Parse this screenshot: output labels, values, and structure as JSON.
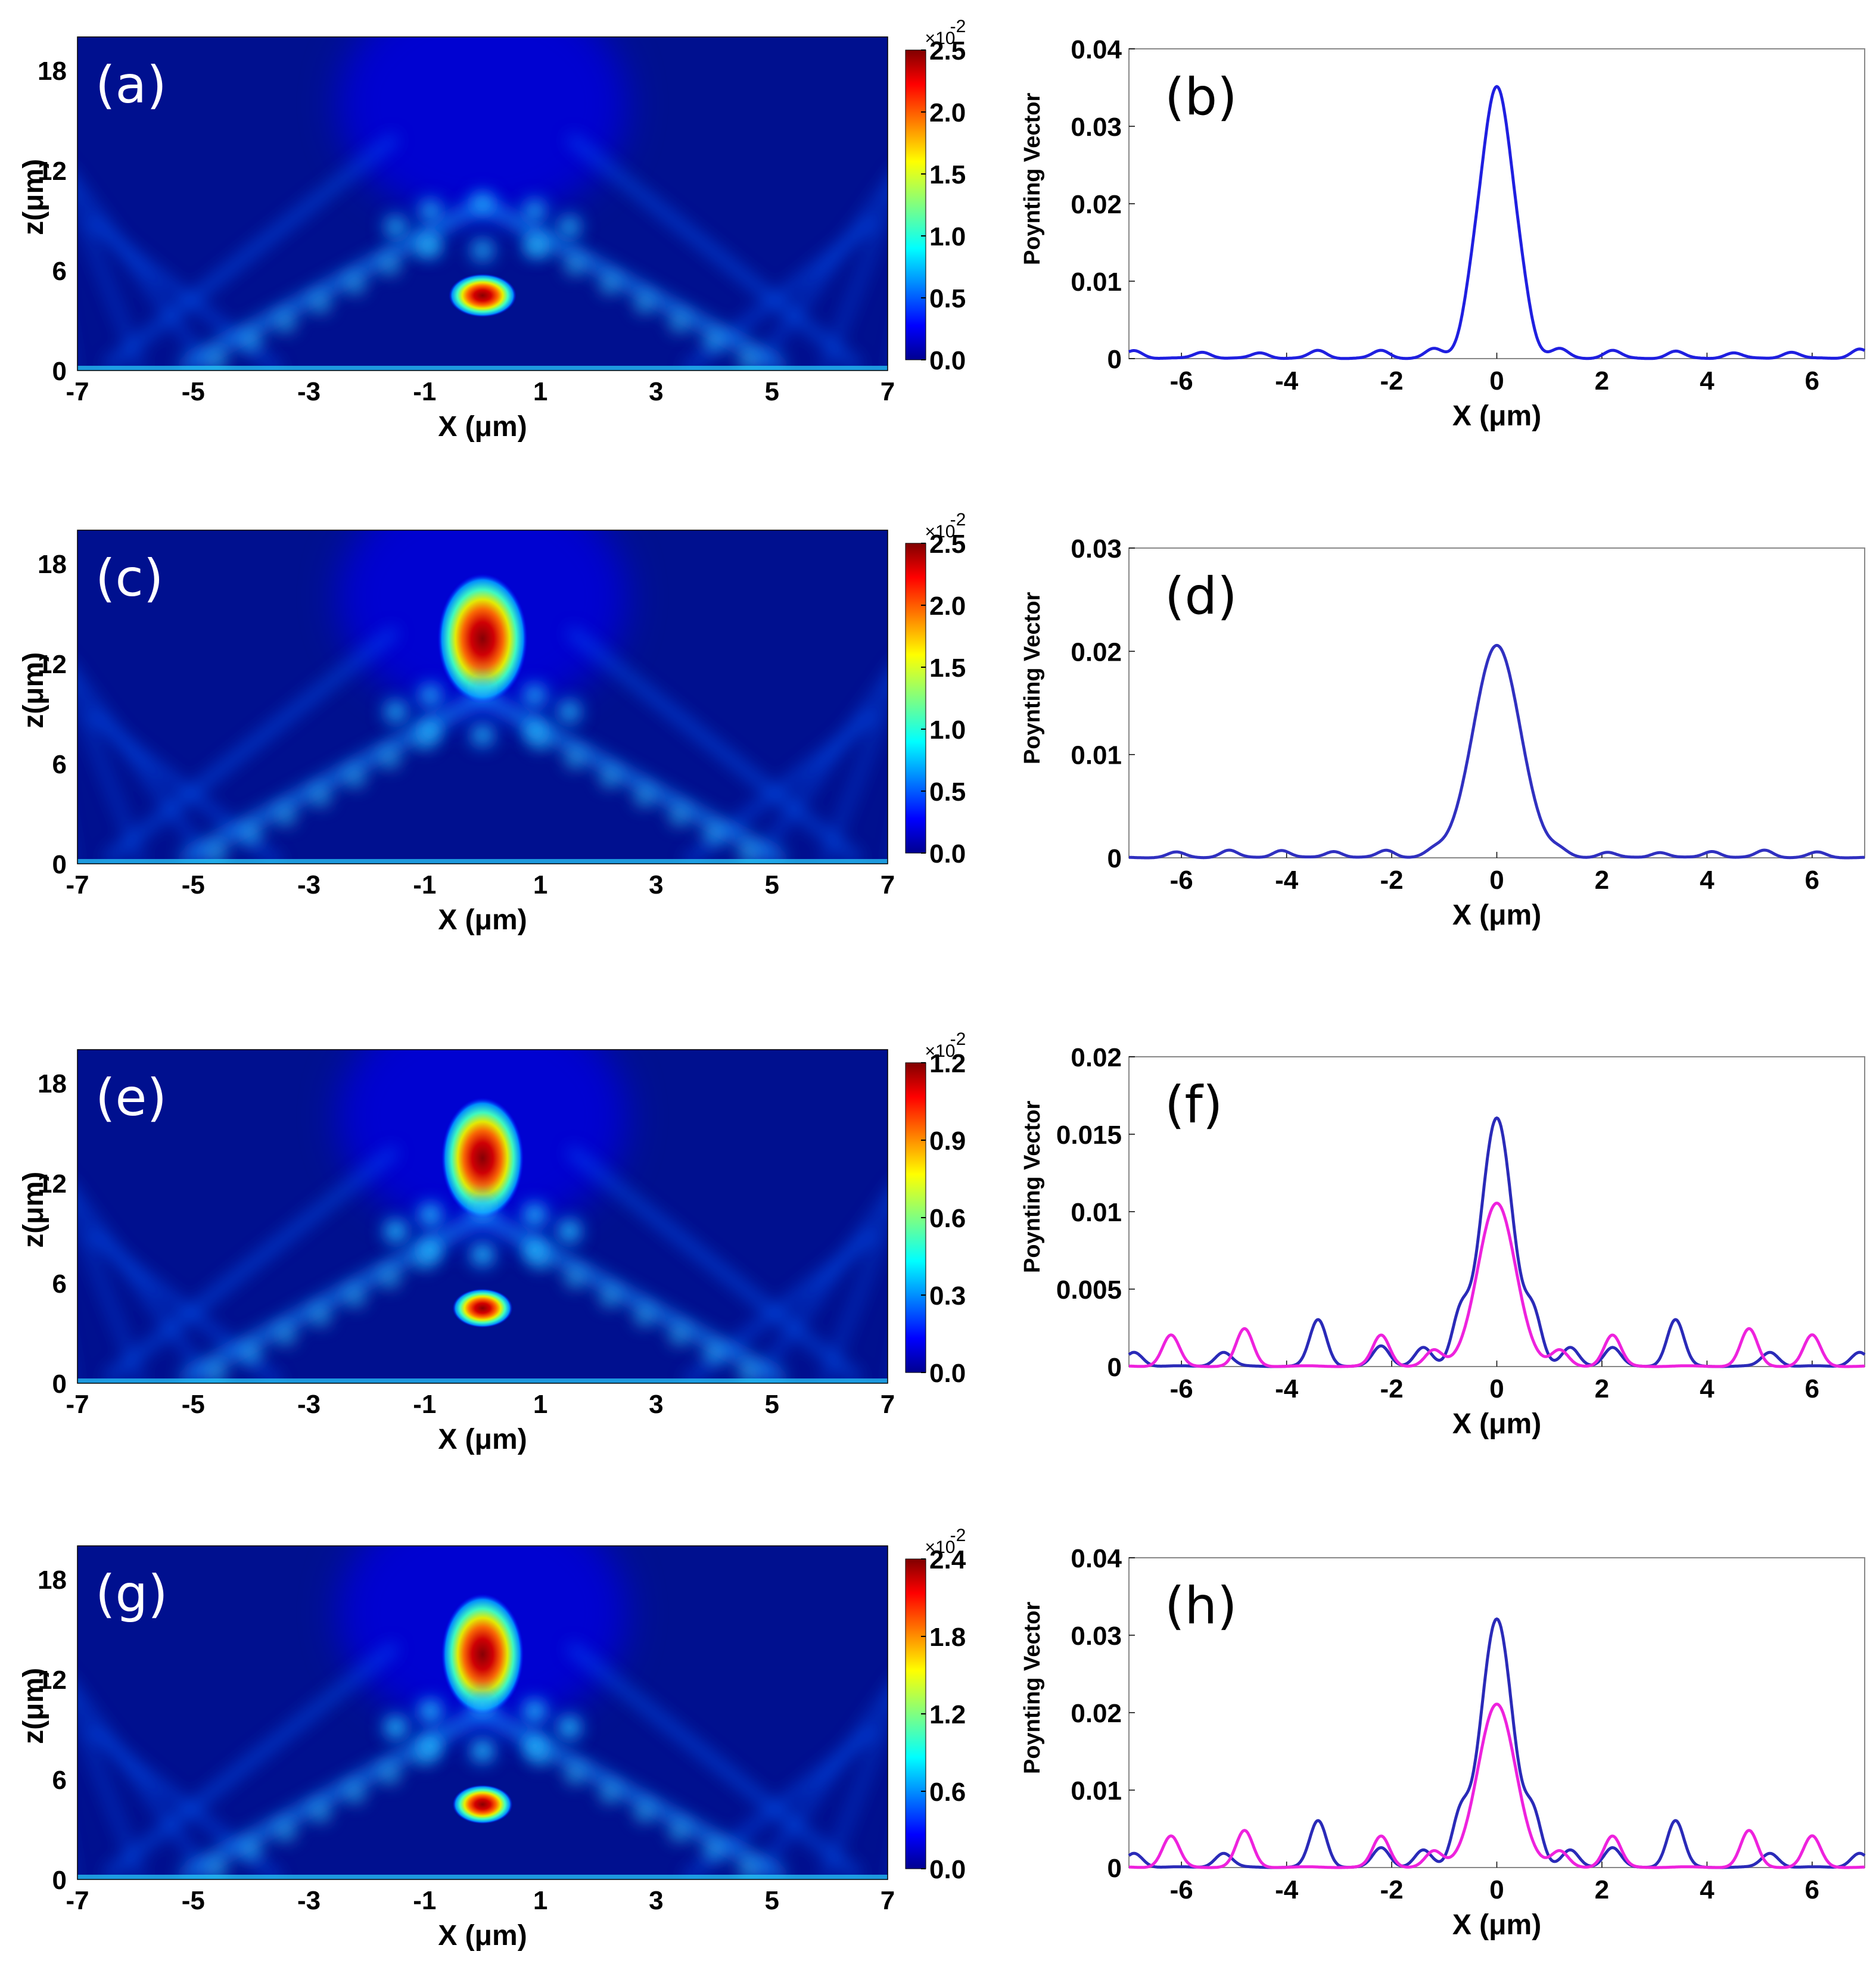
{
  "chart_data": [
    {
      "id": "a",
      "type": "heatmap",
      "panel_label": "(a)",
      "xlabel": "X (μm)",
      "ylabel": "z(μm)",
      "xlim": [
        -7,
        7
      ],
      "ylim": [
        0,
        20
      ],
      "xticks": [
        "-7",
        "-5",
        "-3",
        "-1",
        "1",
        "3",
        "5",
        "7"
      ],
      "yticks": [
        "0",
        "6",
        "12",
        "18"
      ],
      "colorbar": {
        "ticks": [
          "0.0",
          "0.5",
          "1.0",
          "1.5",
          "2.0",
          "2.5"
        ],
        "min": 0,
        "max": 2.5,
        "exponent": "×10",
        "exponent_power": "-2"
      },
      "features": [
        {
          "kind": "hotspot",
          "x": 0,
          "z": 4.5,
          "rx": 0.45,
          "rz": 1.0,
          "value": 2.5
        },
        {
          "kind": "ring",
          "x": 0,
          "z": 7.5,
          "value": 0.6
        },
        {
          "kind": "beam",
          "from": [
            -6,
            0
          ],
          "to": [
            0,
            15
          ],
          "value": 0.35
        },
        {
          "kind": "beam",
          "from": [
            6,
            0
          ],
          "to": [
            0,
            15
          ],
          "value": 0.35
        }
      ]
    },
    {
      "id": "b",
      "type": "line",
      "panel_label": "(b)",
      "xlabel": "X (μm)",
      "ylabel": "Poynting Vector",
      "xlim": [
        -7,
        7
      ],
      "ylim": [
        0,
        0.04
      ],
      "xticks": [
        "-6",
        "-4",
        "-2",
        "0",
        "2",
        "4",
        "6"
      ],
      "yticks": [
        "0",
        "0.01",
        "0.02",
        "0.03",
        "0.04"
      ],
      "series": [
        {
          "name": "blue",
          "color": "#1f1fe0",
          "peak": 0.035,
          "width": 0.32,
          "side_lobes": [
            {
              "x": -0.5,
              "y": 0.0025
            },
            {
              "x": 0.5,
              "y": 0.0025
            },
            {
              "x": -1.2,
              "y": 0.0012
            },
            {
              "x": 1.2,
              "y": 0.0012
            },
            {
              "x": -2.2,
              "y": 0.001
            },
            {
              "x": 2.2,
              "y": 0.001
            },
            {
              "x": -3.4,
              "y": 0.001
            },
            {
              "x": 3.4,
              "y": 0.0009
            },
            {
              "x": -4.5,
              "y": 0.0007
            },
            {
              "x": 4.5,
              "y": 0.0007
            },
            {
              "x": -5.6,
              "y": 0.0008
            },
            {
              "x": 5.6,
              "y": 0.0008
            },
            {
              "x": -6.9,
              "y": 0.001
            },
            {
              "x": 6.9,
              "y": 0.0012
            }
          ]
        }
      ]
    },
    {
      "id": "c",
      "type": "heatmap",
      "panel_label": "(c)",
      "xlabel": "X (μm)",
      "ylabel": "z(μm)",
      "xlim": [
        -7,
        7
      ],
      "ylim": [
        0,
        20
      ],
      "xticks": [
        "-7",
        "-5",
        "-3",
        "-1",
        "1",
        "3",
        "5",
        "7"
      ],
      "yticks": [
        "0",
        "6",
        "12",
        "18"
      ],
      "colorbar": {
        "ticks": [
          "0.0",
          "0.5",
          "1.0",
          "1.5",
          "2.0",
          "2.5"
        ],
        "min": 0,
        "max": 2.5,
        "exponent": "×10",
        "exponent_power": "-2"
      },
      "features": [
        {
          "kind": "hotspot",
          "x": 0,
          "z": 13.5,
          "rx": 0.6,
          "rz": 3.0,
          "value": 2.2
        },
        {
          "kind": "ring",
          "x": 0,
          "z": 8,
          "value": 0.7
        },
        {
          "kind": "beam",
          "from": [
            -5,
            0
          ],
          "to": [
            0,
            12
          ],
          "value": 0.35
        },
        {
          "kind": "beam",
          "from": [
            5,
            0
          ],
          "to": [
            0,
            12
          ],
          "value": 0.35
        }
      ]
    },
    {
      "id": "d",
      "type": "line",
      "panel_label": "(d)",
      "xlabel": "X (μm)",
      "ylabel": "Poynting Vector",
      "xlim": [
        -7,
        7
      ],
      "ylim": [
        0,
        0.03
      ],
      "xticks": [
        "-6",
        "-4",
        "-2",
        "0",
        "2",
        "4",
        "6"
      ],
      "yticks": [
        "0",
        "0.01",
        "0.02",
        "0.03"
      ],
      "series": [
        {
          "name": "blue",
          "color": "#3030c0",
          "peak": 0.0205,
          "width": 0.45,
          "side_lobes": [
            {
              "x": -1.2,
              "y": 0.0005
            },
            {
              "x": 1.2,
              "y": 0.0005
            },
            {
              "x": -2.1,
              "y": 0.0007
            },
            {
              "x": 2.1,
              "y": 0.0005
            },
            {
              "x": -3.1,
              "y": 0.0006
            },
            {
              "x": 3.1,
              "y": 0.0005
            },
            {
              "x": -4.1,
              "y": 0.0007
            },
            {
              "x": 4.1,
              "y": 0.0006
            },
            {
              "x": -5.1,
              "y": 0.0007
            },
            {
              "x": 5.1,
              "y": 0.0007
            },
            {
              "x": -6.1,
              "y": 0.0005
            },
            {
              "x": 6.1,
              "y": 0.0005
            }
          ]
        }
      ]
    },
    {
      "id": "e",
      "type": "heatmap",
      "panel_label": "(e)",
      "xlabel": "X (μm)",
      "ylabel": "z(μm)",
      "xlim": [
        -7,
        7
      ],
      "ylim": [
        0,
        20
      ],
      "xticks": [
        "-7",
        "-5",
        "-3",
        "-1",
        "1",
        "3",
        "5",
        "7"
      ],
      "yticks": [
        "0",
        "6",
        "12",
        "18"
      ],
      "colorbar": {
        "ticks": [
          "0.0",
          "0.3",
          "0.6",
          "0.9",
          "1.2"
        ],
        "min": 0,
        "max": 1.2,
        "exponent": "×10",
        "exponent_power": "-2"
      },
      "features": [
        {
          "kind": "hotspot",
          "x": 0,
          "z": 13.5,
          "rx": 0.55,
          "rz": 2.8,
          "value": 1.05
        },
        {
          "kind": "hotspot",
          "x": 0,
          "z": 4.5,
          "rx": 0.4,
          "rz": 0.9,
          "value": 1.2
        },
        {
          "kind": "ring",
          "x": 0,
          "z": 8,
          "value": 0.55
        },
        {
          "kind": "beam",
          "from": [
            -5,
            0
          ],
          "to": [
            0,
            12
          ],
          "value": 0.35
        },
        {
          "kind": "beam",
          "from": [
            5,
            0
          ],
          "to": [
            0,
            12
          ],
          "value": 0.35
        }
      ]
    },
    {
      "id": "f",
      "type": "line",
      "panel_label": "(f)",
      "xlabel": "X (μm)",
      "ylabel": "Poynting Vector",
      "xlim": [
        -7,
        7
      ],
      "ylim": [
        0,
        0.02
      ],
      "xticks": [
        "-6",
        "-4",
        "-2",
        "0",
        "2",
        "4",
        "6"
      ],
      "yticks": [
        "0",
        "0.005",
        "0.01",
        "0.015",
        "0.02"
      ],
      "series": [
        {
          "name": "blue",
          "color": "#2a2ab8",
          "peak": 0.016,
          "width": 0.3,
          "side_lobes": [
            {
              "x": -0.7,
              "y": 0.003
            },
            {
              "x": 0.7,
              "y": 0.003
            },
            {
              "x": -3.4,
              "y": 0.003
            },
            {
              "x": 3.4,
              "y": 0.003
            },
            {
              "x": -2.2,
              "y": 0.0013
            },
            {
              "x": 2.2,
              "y": 0.0012
            },
            {
              "x": -1.4,
              "y": 0.0012
            },
            {
              "x": 1.4,
              "y": 0.0012
            },
            {
              "x": -5.2,
              "y": 0.0009
            },
            {
              "x": 5.2,
              "y": 0.0009
            },
            {
              "x": -6.9,
              "y": 0.0009
            },
            {
              "x": 6.9,
              "y": 0.0009
            }
          ]
        },
        {
          "name": "magenta",
          "color": "#ee22dd",
          "peak": 0.0105,
          "width": 0.36,
          "side_lobes": [
            {
              "x": -6.2,
              "y": 0.002
            },
            {
              "x": 6.0,
              "y": 0.002
            },
            {
              "x": -4.8,
              "y": 0.0024
            },
            {
              "x": 4.8,
              "y": 0.0024
            },
            {
              "x": -2.2,
              "y": 0.002
            },
            {
              "x": 2.2,
              "y": 0.002
            },
            {
              "x": -1.2,
              "y": 0.001
            },
            {
              "x": 1.2,
              "y": 0.001
            }
          ]
        }
      ]
    },
    {
      "id": "g",
      "type": "heatmap",
      "panel_label": "(g)",
      "xlabel": "X (μm)",
      "ylabel": "z(μm)",
      "xlim": [
        -7,
        7
      ],
      "ylim": [
        0,
        20
      ],
      "xticks": [
        "-7",
        "-5",
        "-3",
        "-1",
        "1",
        "3",
        "5",
        "7"
      ],
      "yticks": [
        "0",
        "6",
        "12",
        "18"
      ],
      "colorbar": {
        "ticks": [
          "0.0",
          "0.6",
          "1.2",
          "1.8",
          "2.4"
        ],
        "min": 0,
        "max": 2.4,
        "exponent": "×10",
        "exponent_power": "-2"
      },
      "features": [
        {
          "kind": "hotspot",
          "x": 0,
          "z": 13.5,
          "rx": 0.55,
          "rz": 2.8,
          "value": 2.1
        },
        {
          "kind": "hotspot",
          "x": 0,
          "z": 4.5,
          "rx": 0.4,
          "rz": 0.9,
          "value": 2.4
        },
        {
          "kind": "ring",
          "x": 0,
          "z": 8,
          "value": 1.1
        },
        {
          "kind": "beam",
          "from": [
            -5,
            0
          ],
          "to": [
            0,
            12
          ],
          "value": 0.7
        },
        {
          "kind": "beam",
          "from": [
            5,
            0
          ],
          "to": [
            0,
            12
          ],
          "value": 0.7
        }
      ]
    },
    {
      "id": "h",
      "type": "line",
      "panel_label": "(h)",
      "xlabel": "X (μm)",
      "ylabel": "Poynting Vector",
      "xlim": [
        -7,
        7
      ],
      "ylim": [
        0,
        0.04
      ],
      "xticks": [
        "-6",
        "-4",
        "-2",
        "0",
        "2",
        "4",
        "6"
      ],
      "yticks": [
        "0",
        "0.01",
        "0.02",
        "0.03",
        "0.04"
      ],
      "series": [
        {
          "name": "blue",
          "color": "#2a2ab8",
          "peak": 0.032,
          "width": 0.3,
          "side_lobes": [
            {
              "x": -0.7,
              "y": 0.006
            },
            {
              "x": 0.7,
              "y": 0.006
            },
            {
              "x": -3.4,
              "y": 0.006
            },
            {
              "x": 3.4,
              "y": 0.006
            },
            {
              "x": -2.2,
              "y": 0.0025
            },
            {
              "x": 2.2,
              "y": 0.0025
            },
            {
              "x": -1.4,
              "y": 0.0022
            },
            {
              "x": 1.4,
              "y": 0.0022
            },
            {
              "x": -5.2,
              "y": 0.0018
            },
            {
              "x": 5.2,
              "y": 0.0018
            },
            {
              "x": -6.9,
              "y": 0.0018
            },
            {
              "x": 6.9,
              "y": 0.0018
            }
          ]
        },
        {
          "name": "magenta",
          "color": "#ee22dd",
          "peak": 0.021,
          "width": 0.36,
          "side_lobes": [
            {
              "x": -6.2,
              "y": 0.004
            },
            {
              "x": 6.0,
              "y": 0.004
            },
            {
              "x": -4.8,
              "y": 0.0047
            },
            {
              "x": 4.8,
              "y": 0.0047
            },
            {
              "x": -2.2,
              "y": 0.004
            },
            {
              "x": 2.2,
              "y": 0.004
            },
            {
              "x": -1.2,
              "y": 0.002
            },
            {
              "x": 1.2,
              "y": 0.002
            }
          ]
        }
      ]
    }
  ]
}
